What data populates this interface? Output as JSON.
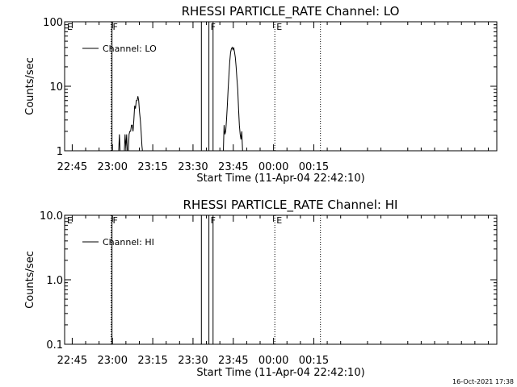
{
  "footer": {
    "timestamp": "16-Oct-2021 17:38"
  },
  "colors": {
    "axes": "#000000",
    "data": "#000000",
    "background": "#ffffff"
  },
  "chart_data": [
    {
      "type": "line",
      "title": "RHESSI PARTICLE_RATE Channel: LO",
      "xlabel": "Start Time (11-Apr-04 22:42:10)",
      "ylabel": "Counts/sec",
      "x_unit": "minutes after 22:42:10",
      "xlim": [
        0,
        161
      ],
      "ylim": [
        1,
        100
      ],
      "yscale": "log",
      "xticks": [
        {
          "x": 2.83,
          "label": "22:45"
        },
        {
          "x": 17.83,
          "label": "23:00"
        },
        {
          "x": 32.83,
          "label": "23:15"
        },
        {
          "x": 47.83,
          "label": "23:30"
        },
        {
          "x": 62.83,
          "label": "23:45"
        },
        {
          "x": 77.83,
          "label": "00:00"
        },
        {
          "x": 92.83,
          "label": "00:15"
        }
      ],
      "yticks": [
        {
          "y": 1,
          "label": "1"
        },
        {
          "y": 10,
          "label": "10"
        },
        {
          "y": 100,
          "label": "100"
        }
      ],
      "legend": {
        "label": "Channel: LO",
        "position": "top-left"
      },
      "markers": [
        {
          "x": 0.3,
          "label": "E",
          "style": "none"
        },
        {
          "x": 17.3,
          "label": "F",
          "style": "dotted"
        },
        {
          "x": 17.65,
          "label": "",
          "style": "solid"
        },
        {
          "x": 50.95,
          "label": "",
          "style": "solid"
        },
        {
          "x": 53.75,
          "label": "F",
          "style": "solid"
        },
        {
          "x": 55.3,
          "label": "",
          "style": "solid"
        },
        {
          "x": 78.3,
          "label": "E",
          "style": "dotted"
        },
        {
          "x": 95.3,
          "label": "",
          "style": "dotted"
        }
      ],
      "series": [
        {
          "segments": [
            [
              [
                20.1,
                0.9
              ],
              [
                20.4,
                1.8
              ],
              [
                20.7,
                0.9
              ]
            ],
            [
              [
                22.2,
                0.9
              ],
              [
                22.5,
                1.8
              ],
              [
                22.8,
                1.1
              ],
              [
                23.1,
                1.8
              ],
              [
                23.4,
                0.9
              ]
            ],
            [
              [
                23.7,
                0.9
              ],
              [
                24.0,
                1.8
              ],
              [
                24.3,
                2.0
              ],
              [
                24.6,
                2.0
              ],
              [
                24.9,
                2.5
              ],
              [
                25.2,
                2.5
              ],
              [
                25.5,
                2.0
              ],
              [
                25.8,
                3.0
              ],
              [
                26.1,
                5.0
              ],
              [
                26.4,
                4.5
              ],
              [
                26.7,
                6.0
              ],
              [
                27.0,
                6.0
              ],
              [
                27.3,
                7.0
              ],
              [
                27.6,
                6.0
              ],
              [
                27.9,
                4.0
              ],
              [
                28.2,
                3.0
              ],
              [
                28.5,
                2.0
              ],
              [
                28.8,
                1.2
              ],
              [
                29.1,
                0.9
              ]
            ],
            [
              [
                59.1,
                0.9
              ],
              [
                59.4,
                2.5
              ],
              [
                59.7,
                1.8
              ],
              [
                60.0,
                2.0
              ],
              [
                60.3,
                3.0
              ],
              [
                60.6,
                5.0
              ],
              [
                60.9,
                9.0
              ],
              [
                61.2,
                15.0
              ],
              [
                61.5,
                24.0
              ],
              [
                61.8,
                33.0
              ],
              [
                62.1,
                38.0
              ],
              [
                62.4,
                40.0
              ],
              [
                62.7,
                37.0
              ],
              [
                63.0,
                40.0
              ],
              [
                63.3,
                34.0
              ],
              [
                63.6,
                28.0
              ],
              [
                63.9,
                20.0
              ],
              [
                64.2,
                13.0
              ],
              [
                64.5,
                9.0
              ],
              [
                64.8,
                4.5
              ],
              [
                65.1,
                2.5
              ],
              [
                65.4,
                1.8
              ],
              [
                65.7,
                1.5
              ],
              [
                66.0,
                2.0
              ],
              [
                66.3,
                1.0
              ],
              [
                66.6,
                0.9
              ]
            ]
          ]
        }
      ]
    },
    {
      "type": "line",
      "title": "RHESSI PARTICLE_RATE Channel: HI",
      "xlabel": "Start Time (11-Apr-04 22:42:10)",
      "ylabel": "Counts/sec",
      "x_unit": "minutes after 22:42:10",
      "xlim": [
        0,
        161
      ],
      "ylim": [
        0.1,
        10
      ],
      "yscale": "log",
      "xticks": [
        {
          "x": 2.83,
          "label": "22:45"
        },
        {
          "x": 17.83,
          "label": "23:00"
        },
        {
          "x": 32.83,
          "label": "23:15"
        },
        {
          "x": 47.83,
          "label": "23:30"
        },
        {
          "x": 62.83,
          "label": "23:45"
        },
        {
          "x": 77.83,
          "label": "00:00"
        },
        {
          "x": 92.83,
          "label": "00:15"
        }
      ],
      "yticks": [
        {
          "y": 0.1,
          "label": "0.1"
        },
        {
          "y": 1,
          "label": "1.0"
        },
        {
          "y": 10,
          "label": "10.0"
        }
      ],
      "legend": {
        "label": "Channel: HI",
        "position": "top-left"
      },
      "markers": [
        {
          "x": 0.3,
          "label": "E",
          "style": "none"
        },
        {
          "x": 17.3,
          "label": "F",
          "style": "dotted"
        },
        {
          "x": 17.65,
          "label": "",
          "style": "solid"
        },
        {
          "x": 50.95,
          "label": "",
          "style": "solid"
        },
        {
          "x": 53.75,
          "label": "F",
          "style": "solid"
        },
        {
          "x": 55.3,
          "label": "",
          "style": "solid"
        },
        {
          "x": 78.3,
          "label": "E",
          "style": "dotted"
        },
        {
          "x": 95.3,
          "label": "",
          "style": "dotted"
        }
      ],
      "series": [
        {
          "segments": []
        }
      ]
    }
  ]
}
